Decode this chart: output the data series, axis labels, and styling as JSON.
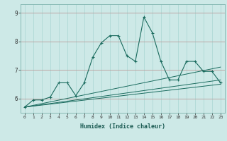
{
  "xlabel": "Humidex (Indice chaleur)",
  "background_color": "#cde9e7",
  "grid_color": "#a8d5d2",
  "line_color": "#1a6b5e",
  "x_ticks": [
    0,
    1,
    2,
    3,
    4,
    5,
    6,
    7,
    8,
    9,
    10,
    11,
    12,
    13,
    14,
    15,
    16,
    17,
    18,
    19,
    20,
    21,
    22,
    23
  ],
  "ylim": [
    5.5,
    9.3
  ],
  "yticks": [
    6,
    7,
    8,
    9
  ],
  "series": {
    "main": {
      "x": [
        0,
        1,
        2,
        3,
        4,
        5,
        6,
        7,
        8,
        9,
        10,
        11,
        12,
        13,
        14,
        15,
        16,
        17,
        18,
        19,
        20,
        21,
        22,
        23
      ],
      "y": [
        5.7,
        5.95,
        5.95,
        6.05,
        6.55,
        6.55,
        6.1,
        6.55,
        7.45,
        7.95,
        8.2,
        8.2,
        7.5,
        7.3,
        8.85,
        8.3,
        7.3,
        6.65,
        6.65,
        7.3,
        7.3,
        6.95,
        6.95,
        6.55
      ]
    },
    "line1": {
      "x": [
        0,
        23
      ],
      "y": [
        5.7,
        6.5
      ]
    },
    "line2": {
      "x": [
        0,
        23
      ],
      "y": [
        5.7,
        6.65
      ]
    },
    "line3": {
      "x": [
        0,
        23
      ],
      "y": [
        5.7,
        7.1
      ]
    }
  }
}
